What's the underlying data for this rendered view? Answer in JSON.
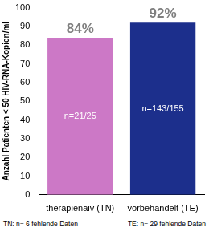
{
  "chart_data": {
    "type": "bar",
    "y_label": "Anzahl Patienten < 50 HIV-RNA-Kopien/ml",
    "categories": [
      "therapienaiv (TN)",
      "vorbehandelt (TE)"
    ],
    "values": [
      84,
      92
    ],
    "value_labels": [
      "84%",
      "92%"
    ],
    "colors": [
      "#cc78c6",
      "#1c2f8c"
    ],
    "annotations": [
      "n=21/25",
      "n=143/155"
    ],
    "footnote": [
      "TN: n= 6 fehlende Daten",
      "TE: n= 29 fehlende Daten"
    ],
    "ylim": [
      0,
      100
    ],
    "yticks": [
      0,
      10,
      20,
      30,
      40,
      50,
      60,
      70,
      80,
      90,
      100
    ],
    "grid": false,
    "data_labels": true
  }
}
